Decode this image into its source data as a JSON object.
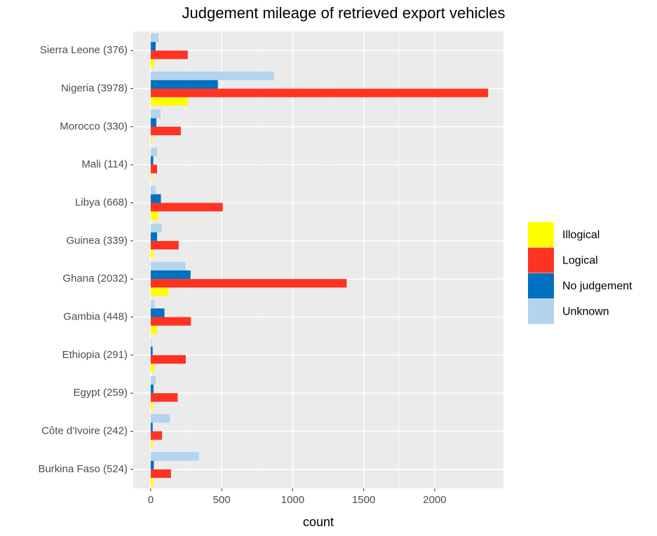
{
  "chart_data": {
    "type": "bar",
    "orientation": "horizontal",
    "title": "Judgement mileage of retrieved export vehicles",
    "x_label": "count",
    "categories": [
      "Sierra Leone (376)",
      "Nigeria (3978)",
      "Morocco (330)",
      "Mali (114)",
      "Libya (668)",
      "Guinea (339)",
      "Ghana (2032)",
      "Gambia (448)",
      "Ethiopia (291)",
      "Egypt (259)",
      "Côte d'Ivoire (242)",
      "Burkina Faso (524)"
    ],
    "series": [
      {
        "name": "Illogical",
        "color": "#ffff00",
        "values": [
          25,
          261,
          8,
          6,
          54,
          19,
          125,
          43,
          25,
          14,
          13,
          19
        ]
      },
      {
        "name": "Logical",
        "color": "#ff3322",
        "values": [
          261,
          2376,
          212,
          45,
          507,
          197,
          1380,
          283,
          247,
          190,
          80,
          143
        ]
      },
      {
        "name": "No judgement",
        "color": "#0070c0",
        "values": [
          35,
          473,
          40,
          18,
          72,
          45,
          281,
          97,
          14,
          20,
          14,
          22
        ]
      },
      {
        "name": "Unknown",
        "color": "#b3d4ec",
        "values": [
          55,
          868,
          70,
          45,
          35,
          78,
          246,
          25,
          5,
          35,
          135,
          340
        ]
      }
    ],
    "xlim": [
      -123,
      2484
    ],
    "xticks": [
      0,
      500,
      1000,
      1500,
      2000
    ],
    "grid": true,
    "legend": "right"
  }
}
